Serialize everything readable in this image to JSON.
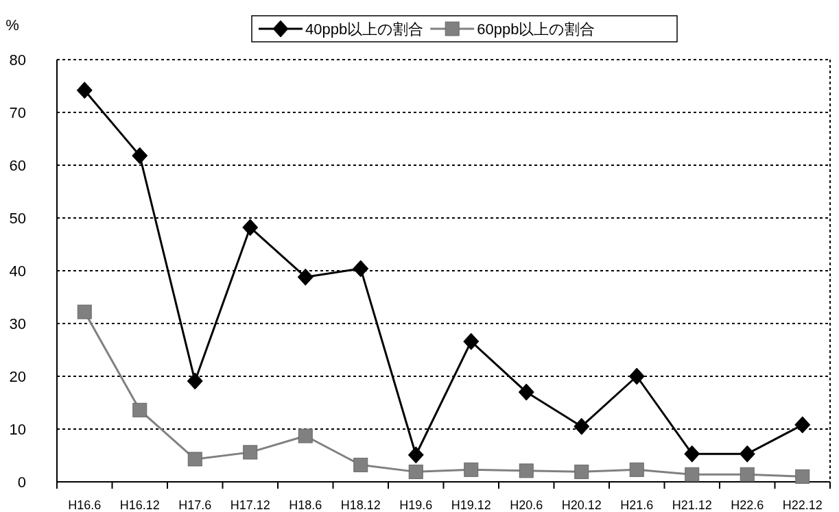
{
  "chart_data": {
    "type": "line",
    "ylabel": "%",
    "categories": [
      "H16.6",
      "H16.12",
      "H17.6",
      "H17.12",
      "H18.6",
      "H18.12",
      "H19.6",
      "H19.12",
      "H20.6",
      "H20.12",
      "H21.6",
      "H21.12",
      "H22.6",
      "H22.12"
    ],
    "series": [
      {
        "name": "40ppb以上の割合",
        "color": "#000000",
        "marker": "diamond",
        "values": [
          74.2,
          61.8,
          19.1,
          48.2,
          38.8,
          40.4,
          5.1,
          26.6,
          17.0,
          10.5,
          20.0,
          5.3,
          5.3,
          10.8
        ]
      },
      {
        "name": "60ppb以上の割合",
        "color": "#808080",
        "marker": "square",
        "values": [
          32.2,
          13.6,
          4.3,
          5.6,
          8.7,
          3.2,
          1.9,
          2.3,
          2.1,
          1.9,
          2.3,
          1.4,
          1.4,
          1.0
        ]
      }
    ],
    "ylim": [
      0,
      80
    ],
    "yticks": [
      0,
      10,
      20,
      30,
      40,
      50,
      60,
      70,
      80
    ],
    "grid": "y",
    "legend": "top",
    "line_style": "solid"
  }
}
